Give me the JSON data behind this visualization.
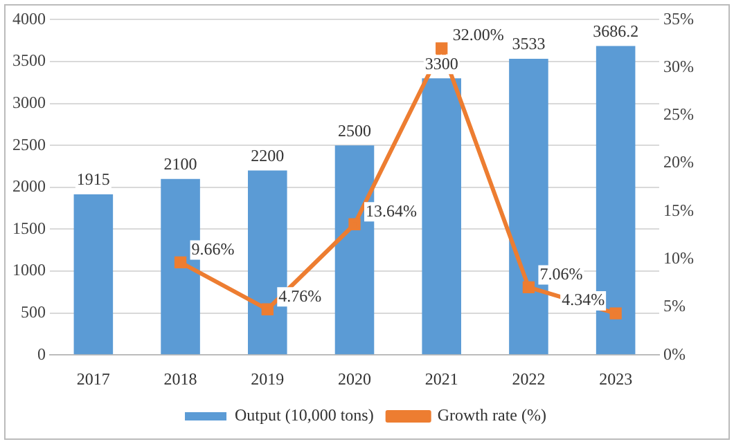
{
  "chart_data": {
    "type": "bar",
    "categories": [
      "2017",
      "2018",
      "2019",
      "2020",
      "2021",
      "2022",
      "2023"
    ],
    "series": [
      {
        "name": "Output (10,000 tons)",
        "color": "#5b9bd5",
        "values": [
          1915,
          2100,
          2200,
          2500,
          3300,
          3533,
          3686.2
        ],
        "value_labels": [
          "1915",
          "2100",
          "2200",
          "2500",
          "3300",
          "3533",
          "3686.2"
        ]
      },
      {
        "name": "Growth rate (%)",
        "type": "line",
        "axis": "y2",
        "color": "#ed7d31",
        "marker": "square",
        "values": [
          null,
          9.66,
          4.76,
          13.64,
          32.0,
          7.06,
          4.34
        ],
        "value_labels": [
          null,
          "9.66%",
          "4.76%",
          "13.64%",
          "32.00%",
          "7.06%",
          "4.34%"
        ]
      }
    ],
    "ylim": [
      0,
      4000
    ],
    "yticks": [
      0,
      500,
      1000,
      1500,
      2000,
      2500,
      3000,
      3500,
      4000
    ],
    "y2lim": [
      0,
      35
    ],
    "y2ticks": [
      {
        "value": 0,
        "label": "0%"
      },
      {
        "value": 5,
        "label": "5%"
      },
      {
        "value": 10,
        "label": "10%"
      },
      {
        "value": 15,
        "label": "15%"
      },
      {
        "value": 20,
        "label": "20%"
      },
      {
        "value": 25,
        "label": "25%"
      },
      {
        "value": 30,
        "label": "30%"
      },
      {
        "value": 35,
        "label": "35%"
      }
    ],
    "grid": "y",
    "legend": "bottom"
  }
}
